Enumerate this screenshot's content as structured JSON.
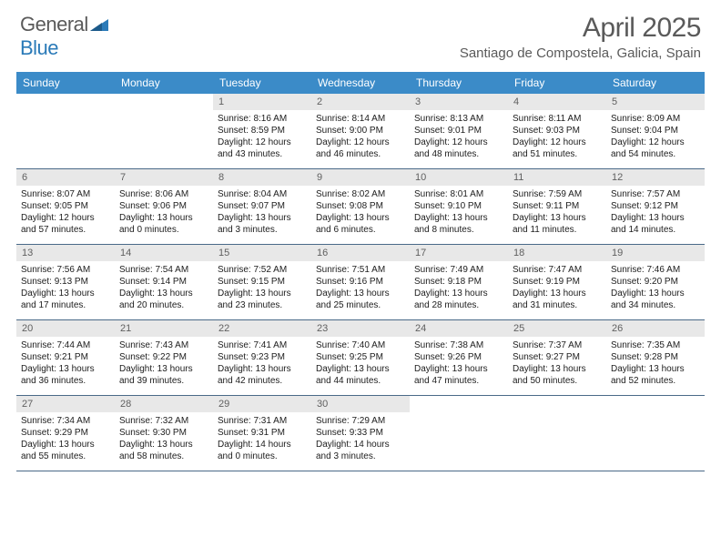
{
  "brand": {
    "text_gray": "General",
    "text_blue": "Blue"
  },
  "title": {
    "month": "April 2025",
    "location": "Santiago de Compostela, Galicia, Spain"
  },
  "colors": {
    "header_bg": "#3b8bc8",
    "header_text": "#ffffff",
    "daynum_bg": "#e8e8e8",
    "daynum_text": "#606060",
    "row_border": "#4a6a88",
    "body_text": "#202020",
    "title_text": "#5a5a5a",
    "logo_blue": "#2a7ab8"
  },
  "weekdays": [
    "Sunday",
    "Monday",
    "Tuesday",
    "Wednesday",
    "Thursday",
    "Friday",
    "Saturday"
  ],
  "weeks": [
    [
      {
        "empty": true
      },
      {
        "empty": true
      },
      {
        "day": "1",
        "sunrise": "Sunrise: 8:16 AM",
        "sunset": "Sunset: 8:59 PM",
        "daylight": "Daylight: 12 hours and 43 minutes."
      },
      {
        "day": "2",
        "sunrise": "Sunrise: 8:14 AM",
        "sunset": "Sunset: 9:00 PM",
        "daylight": "Daylight: 12 hours and 46 minutes."
      },
      {
        "day": "3",
        "sunrise": "Sunrise: 8:13 AM",
        "sunset": "Sunset: 9:01 PM",
        "daylight": "Daylight: 12 hours and 48 minutes."
      },
      {
        "day": "4",
        "sunrise": "Sunrise: 8:11 AM",
        "sunset": "Sunset: 9:03 PM",
        "daylight": "Daylight: 12 hours and 51 minutes."
      },
      {
        "day": "5",
        "sunrise": "Sunrise: 8:09 AM",
        "sunset": "Sunset: 9:04 PM",
        "daylight": "Daylight: 12 hours and 54 minutes."
      }
    ],
    [
      {
        "day": "6",
        "sunrise": "Sunrise: 8:07 AM",
        "sunset": "Sunset: 9:05 PM",
        "daylight": "Daylight: 12 hours and 57 minutes."
      },
      {
        "day": "7",
        "sunrise": "Sunrise: 8:06 AM",
        "sunset": "Sunset: 9:06 PM",
        "daylight": "Daylight: 13 hours and 0 minutes."
      },
      {
        "day": "8",
        "sunrise": "Sunrise: 8:04 AM",
        "sunset": "Sunset: 9:07 PM",
        "daylight": "Daylight: 13 hours and 3 minutes."
      },
      {
        "day": "9",
        "sunrise": "Sunrise: 8:02 AM",
        "sunset": "Sunset: 9:08 PM",
        "daylight": "Daylight: 13 hours and 6 minutes."
      },
      {
        "day": "10",
        "sunrise": "Sunrise: 8:01 AM",
        "sunset": "Sunset: 9:10 PM",
        "daylight": "Daylight: 13 hours and 8 minutes."
      },
      {
        "day": "11",
        "sunrise": "Sunrise: 7:59 AM",
        "sunset": "Sunset: 9:11 PM",
        "daylight": "Daylight: 13 hours and 11 minutes."
      },
      {
        "day": "12",
        "sunrise": "Sunrise: 7:57 AM",
        "sunset": "Sunset: 9:12 PM",
        "daylight": "Daylight: 13 hours and 14 minutes."
      }
    ],
    [
      {
        "day": "13",
        "sunrise": "Sunrise: 7:56 AM",
        "sunset": "Sunset: 9:13 PM",
        "daylight": "Daylight: 13 hours and 17 minutes."
      },
      {
        "day": "14",
        "sunrise": "Sunrise: 7:54 AM",
        "sunset": "Sunset: 9:14 PM",
        "daylight": "Daylight: 13 hours and 20 minutes."
      },
      {
        "day": "15",
        "sunrise": "Sunrise: 7:52 AM",
        "sunset": "Sunset: 9:15 PM",
        "daylight": "Daylight: 13 hours and 23 minutes."
      },
      {
        "day": "16",
        "sunrise": "Sunrise: 7:51 AM",
        "sunset": "Sunset: 9:16 PM",
        "daylight": "Daylight: 13 hours and 25 minutes."
      },
      {
        "day": "17",
        "sunrise": "Sunrise: 7:49 AM",
        "sunset": "Sunset: 9:18 PM",
        "daylight": "Daylight: 13 hours and 28 minutes."
      },
      {
        "day": "18",
        "sunrise": "Sunrise: 7:47 AM",
        "sunset": "Sunset: 9:19 PM",
        "daylight": "Daylight: 13 hours and 31 minutes."
      },
      {
        "day": "19",
        "sunrise": "Sunrise: 7:46 AM",
        "sunset": "Sunset: 9:20 PM",
        "daylight": "Daylight: 13 hours and 34 minutes."
      }
    ],
    [
      {
        "day": "20",
        "sunrise": "Sunrise: 7:44 AM",
        "sunset": "Sunset: 9:21 PM",
        "daylight": "Daylight: 13 hours and 36 minutes."
      },
      {
        "day": "21",
        "sunrise": "Sunrise: 7:43 AM",
        "sunset": "Sunset: 9:22 PM",
        "daylight": "Daylight: 13 hours and 39 minutes."
      },
      {
        "day": "22",
        "sunrise": "Sunrise: 7:41 AM",
        "sunset": "Sunset: 9:23 PM",
        "daylight": "Daylight: 13 hours and 42 minutes."
      },
      {
        "day": "23",
        "sunrise": "Sunrise: 7:40 AM",
        "sunset": "Sunset: 9:25 PM",
        "daylight": "Daylight: 13 hours and 44 minutes."
      },
      {
        "day": "24",
        "sunrise": "Sunrise: 7:38 AM",
        "sunset": "Sunset: 9:26 PM",
        "daylight": "Daylight: 13 hours and 47 minutes."
      },
      {
        "day": "25",
        "sunrise": "Sunrise: 7:37 AM",
        "sunset": "Sunset: 9:27 PM",
        "daylight": "Daylight: 13 hours and 50 minutes."
      },
      {
        "day": "26",
        "sunrise": "Sunrise: 7:35 AM",
        "sunset": "Sunset: 9:28 PM",
        "daylight": "Daylight: 13 hours and 52 minutes."
      }
    ],
    [
      {
        "day": "27",
        "sunrise": "Sunrise: 7:34 AM",
        "sunset": "Sunset: 9:29 PM",
        "daylight": "Daylight: 13 hours and 55 minutes."
      },
      {
        "day": "28",
        "sunrise": "Sunrise: 7:32 AM",
        "sunset": "Sunset: 9:30 PM",
        "daylight": "Daylight: 13 hours and 58 minutes."
      },
      {
        "day": "29",
        "sunrise": "Sunrise: 7:31 AM",
        "sunset": "Sunset: 9:31 PM",
        "daylight": "Daylight: 14 hours and 0 minutes."
      },
      {
        "day": "30",
        "sunrise": "Sunrise: 7:29 AM",
        "sunset": "Sunset: 9:33 PM",
        "daylight": "Daylight: 14 hours and 3 minutes."
      },
      {
        "empty": true
      },
      {
        "empty": true
      },
      {
        "empty": true
      }
    ]
  ]
}
